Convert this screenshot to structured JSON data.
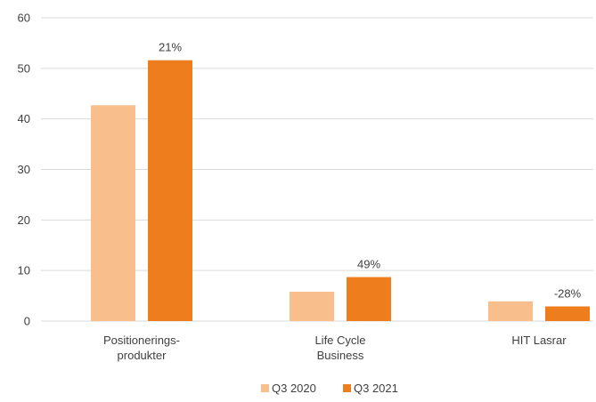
{
  "chart_data": {
    "type": "bar",
    "title": "",
    "xlabel": "",
    "ylabel": "",
    "ylim": [
      0,
      60
    ],
    "yticks": [
      0,
      10,
      20,
      30,
      40,
      50,
      60
    ],
    "grid": true,
    "legend_position": "bottom",
    "categories": [
      [
        "Positionerings-",
        "produkter"
      ],
      [
        "Life Cycle",
        "Business"
      ],
      [
        "HIT Lasrar"
      ]
    ],
    "series": [
      {
        "name": "Q3 2020",
        "color": "#f8be8c",
        "values": [
          42.7,
          5.8,
          3.9
        ]
      },
      {
        "name": "Q3 2021",
        "color": "#ee7d1e",
        "values": [
          51.6,
          8.7,
          2.9
        ]
      }
    ],
    "data_labels": [
      "21%",
      "49%",
      "-28%"
    ]
  }
}
